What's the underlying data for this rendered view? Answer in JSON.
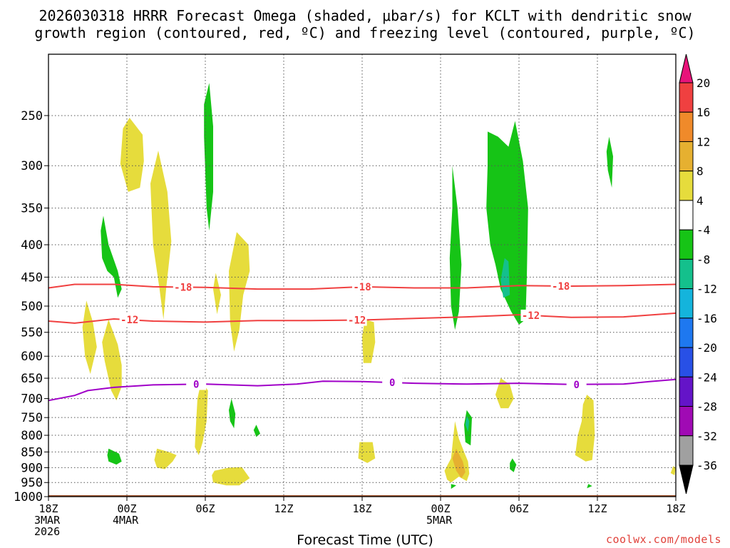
{
  "chart_data": {
    "type": "heatmap",
    "title_line1": "2026030318 HRRR Forecast Omega (shaded, μbar/s) for KCLT with dendritic snow",
    "title_line2": "growth region (contoured, red, ºC) and freezing level (contoured, purple, ºC)",
    "xlabel": "Forecast Time (UTC)",
    "ylabel": "",
    "credit": "coolwx.com/models",
    "x_unit": "forecast hour",
    "xlim": [
      0,
      48
    ],
    "ylim": [
      1000,
      200
    ],
    "x_ticks": [
      {
        "hour": 0,
        "lines": [
          "18Z",
          "3MAR",
          "2026"
        ]
      },
      {
        "hour": 6,
        "lines": [
          "00Z",
          "4MAR"
        ]
      },
      {
        "hour": 12,
        "lines": [
          "06Z"
        ]
      },
      {
        "hour": 18,
        "lines": [
          "12Z"
        ]
      },
      {
        "hour": 24,
        "lines": [
          "18Z"
        ]
      },
      {
        "hour": 30,
        "lines": [
          "00Z",
          "5MAR"
        ]
      },
      {
        "hour": 36,
        "lines": [
          "06Z"
        ]
      },
      {
        "hour": 42,
        "lines": [
          "12Z"
        ]
      },
      {
        "hour": 48,
        "lines": [
          "18Z"
        ]
      }
    ],
    "y_ticks": [
      250,
      300,
      350,
      400,
      450,
      500,
      550,
      600,
      650,
      700,
      750,
      800,
      850,
      900,
      950,
      1000
    ],
    "colorbar": {
      "labels": [
        "20",
        "16",
        "12",
        "8",
        "4",
        "-4",
        "-8",
        "-12",
        "-16",
        "-20",
        "-24",
        "-28",
        "-32",
        "-36"
      ],
      "colors": [
        "#e8137a",
        "#f04040",
        "#f08a2a",
        "#e6b030",
        "#e6dc3c",
        "#ffffff",
        "#16c416",
        "#14c08c",
        "#14b4dc",
        "#1e78f0",
        "#2850e6",
        "#6414c8",
        "#a00ab4",
        "#a0a0a0",
        "#000000"
      ]
    },
    "contours": [
      {
        "name": "DGZ -18C",
        "label": "-18",
        "color": "#f04040",
        "points": [
          [
            0,
            468
          ],
          [
            2,
            462
          ],
          [
            5,
            462
          ],
          [
            8,
            466
          ],
          [
            12,
            467
          ],
          [
            16,
            470
          ],
          [
            20,
            470
          ],
          [
            24,
            466
          ],
          [
            28,
            468
          ],
          [
            32,
            468
          ],
          [
            36,
            464
          ],
          [
            40,
            465
          ],
          [
            44,
            464
          ],
          [
            48,
            462
          ]
        ],
        "label_hours": [
          10.3,
          24.0,
          39.2
        ]
      },
      {
        "name": "DGZ -12C",
        "label": "-12",
        "color": "#f04040",
        "points": [
          [
            0,
            528
          ],
          [
            2,
            532
          ],
          [
            5,
            524
          ],
          [
            8,
            528
          ],
          [
            12,
            530
          ],
          [
            16,
            527
          ],
          [
            20,
            527
          ],
          [
            24,
            526
          ],
          [
            28,
            523
          ],
          [
            32,
            520
          ],
          [
            36,
            516
          ],
          [
            40,
            521
          ],
          [
            44,
            520
          ],
          [
            48,
            513
          ]
        ],
        "label_hours": [
          6.2,
          23.6,
          36.9
        ]
      },
      {
        "name": "Freezing level 0C",
        "label": "0",
        "color": "#a000c8",
        "points": [
          [
            0,
            705
          ],
          [
            2,
            692
          ],
          [
            3,
            680
          ],
          [
            5,
            672
          ],
          [
            8,
            666
          ],
          [
            12,
            664
          ],
          [
            16,
            668
          ],
          [
            19,
            664
          ],
          [
            21,
            657
          ],
          [
            24,
            658
          ],
          [
            28,
            662
          ],
          [
            32,
            664
          ],
          [
            36,
            662
          ],
          [
            40,
            665
          ],
          [
            44,
            664
          ],
          [
            46,
            658
          ],
          [
            48,
            653
          ]
        ],
        "label_hours": [
          11.3,
          26.3,
          40.4
        ]
      }
    ],
    "omega_regions": [
      {
        "value": 4,
        "pts": [
          [
            6.2,
            252
          ],
          [
            7.2,
            268
          ],
          [
            7.3,
            295
          ],
          [
            7.0,
            325
          ],
          [
            6.1,
            330
          ],
          [
            5.5,
            298
          ],
          [
            5.7,
            262
          ]
        ]
      },
      {
        "value": 4,
        "pts": [
          [
            8.4,
            284
          ],
          [
            9.1,
            330
          ],
          [
            9.4,
            395
          ],
          [
            9.0,
            470
          ],
          [
            8.8,
            525
          ],
          [
            8.5,
            470
          ],
          [
            8.0,
            400
          ],
          [
            7.8,
            320
          ]
        ]
      },
      {
        "value": 4,
        "pts": [
          [
            2.9,
            490
          ],
          [
            3.4,
            530
          ],
          [
            3.7,
            580
          ],
          [
            3.2,
            640
          ],
          [
            2.8,
            600
          ],
          [
            2.6,
            540
          ]
        ]
      },
      {
        "value": 4,
        "pts": [
          [
            4.6,
            525
          ],
          [
            5.3,
            575
          ],
          [
            5.6,
            620
          ],
          [
            5.6,
            670
          ],
          [
            5.2,
            705
          ],
          [
            4.8,
            680
          ],
          [
            4.3,
            610
          ],
          [
            4.1,
            570
          ]
        ]
      },
      {
        "value": 4,
        "pts": [
          [
            12.8,
            443
          ],
          [
            13.2,
            480
          ],
          [
            12.9,
            515
          ],
          [
            12.6,
            470
          ]
        ]
      },
      {
        "value": 4,
        "pts": [
          [
            14.4,
            382
          ],
          [
            15.3,
            400
          ],
          [
            15.4,
            440
          ],
          [
            14.9,
            480
          ],
          [
            14.6,
            545
          ],
          [
            14.2,
            590
          ],
          [
            13.9,
            530
          ],
          [
            13.8,
            440
          ]
        ]
      },
      {
        "value": 4,
        "pts": [
          [
            24.2,
            525
          ],
          [
            24.9,
            530
          ],
          [
            25.0,
            570
          ],
          [
            24.7,
            615
          ],
          [
            24.1,
            615
          ],
          [
            24.0,
            560
          ]
        ]
      },
      {
        "value": 4,
        "pts": [
          [
            11.7,
            655
          ],
          [
            12.2,
            680
          ],
          [
            12.1,
            760
          ],
          [
            11.8,
            820
          ],
          [
            11.5,
            860
          ],
          [
            11.2,
            835
          ],
          [
            11.3,
            760
          ],
          [
            11.4,
            700
          ]
        ]
      },
      {
        "value": 4,
        "pts": [
          [
            8.3,
            840
          ],
          [
            9.2,
            850
          ],
          [
            9.8,
            860
          ],
          [
            9.5,
            880
          ],
          [
            8.9,
            905
          ],
          [
            8.3,
            900
          ],
          [
            8.1,
            875
          ]
        ]
      },
      {
        "value": 4,
        "pts": [
          [
            12.7,
            910
          ],
          [
            13.8,
            900
          ],
          [
            14.8,
            898
          ],
          [
            15.4,
            935
          ],
          [
            14.6,
            960
          ],
          [
            13.6,
            960
          ],
          [
            12.6,
            950
          ],
          [
            12.5,
            925
          ]
        ]
      },
      {
        "value": 4,
        "pts": [
          [
            23.8,
            820
          ],
          [
            24.8,
            820
          ],
          [
            25.0,
            870
          ],
          [
            24.4,
            885
          ],
          [
            23.7,
            870
          ]
        ]
      },
      {
        "value": 4,
        "pts": [
          [
            34.6,
            650
          ],
          [
            35.3,
            665
          ],
          [
            35.6,
            700
          ],
          [
            35.2,
            725
          ],
          [
            34.6,
            725
          ],
          [
            34.2,
            690
          ]
        ]
      },
      {
        "value": 4,
        "pts": [
          [
            41.2,
            690
          ],
          [
            41.7,
            705
          ],
          [
            41.8,
            800
          ],
          [
            41.6,
            875
          ],
          [
            41.1,
            880
          ],
          [
            40.3,
            860
          ],
          [
            40.5,
            800
          ],
          [
            40.8,
            760
          ],
          [
            40.9,
            715
          ]
        ]
      },
      {
        "value": 4,
        "pts": [
          [
            47.8,
            895
          ],
          [
            48.0,
            900
          ],
          [
            47.9,
            925
          ],
          [
            47.6,
            918
          ]
        ]
      },
      {
        "value": 4,
        "pts": [
          [
            31.1,
            760
          ],
          [
            31.4,
            810
          ],
          [
            31.8,
            850
          ],
          [
            32.1,
            880
          ],
          [
            32.2,
            920
          ],
          [
            32.0,
            945
          ],
          [
            31.4,
            930
          ],
          [
            30.8,
            950
          ],
          [
            30.5,
            940
          ],
          [
            30.3,
            910
          ],
          [
            30.8,
            870
          ]
        ]
      },
      {
        "value": 8,
        "pts": [
          [
            31.2,
            840
          ],
          [
            31.7,
            880
          ],
          [
            31.9,
            915
          ],
          [
            31.6,
            935
          ],
          [
            31.2,
            910
          ],
          [
            30.9,
            870
          ]
        ]
      },
      {
        "value": -4,
        "pts": [
          [
            12.3,
            222
          ],
          [
            12.6,
            260
          ],
          [
            12.6,
            330
          ],
          [
            12.3,
            380
          ],
          [
            12.1,
            350
          ],
          [
            11.9,
            270
          ],
          [
            11.9,
            240
          ]
        ]
      },
      {
        "value": -4,
        "pts": [
          [
            4.2,
            360
          ],
          [
            4.6,
            400
          ],
          [
            5.3,
            440
          ],
          [
            5.6,
            470
          ],
          [
            5.3,
            485
          ],
          [
            5.0,
            450
          ],
          [
            4.5,
            440
          ],
          [
            4.1,
            420
          ],
          [
            4.0,
            380
          ]
        ]
      },
      {
        "value": -4,
        "pts": [
          [
            14.0,
            700
          ],
          [
            14.3,
            740
          ],
          [
            14.2,
            780
          ],
          [
            13.9,
            760
          ],
          [
            13.8,
            730
          ]
        ]
      },
      {
        "value": -4,
        "pts": [
          [
            15.9,
            770
          ],
          [
            16.2,
            795
          ],
          [
            15.9,
            805
          ],
          [
            15.7,
            785
          ]
        ]
      },
      {
        "value": -4,
        "pts": [
          [
            4.6,
            840
          ],
          [
            5.4,
            855
          ],
          [
            5.6,
            880
          ],
          [
            5.2,
            890
          ],
          [
            4.6,
            880
          ],
          [
            4.5,
            860
          ]
        ]
      },
      {
        "value": -4,
        "pts": [
          [
            33.6,
            265
          ],
          [
            34.4,
            270
          ],
          [
            35.2,
            280
          ],
          [
            35.7,
            255
          ],
          [
            36.3,
            295
          ],
          [
            36.7,
            350
          ],
          [
            36.6,
            450
          ],
          [
            36.5,
            525
          ],
          [
            36.0,
            535
          ],
          [
            35.4,
            510
          ],
          [
            34.6,
            470
          ],
          [
            34.2,
            430
          ],
          [
            33.8,
            400
          ],
          [
            33.5,
            350
          ],
          [
            33.6,
            300
          ]
        ]
      },
      {
        "value": -4,
        "pts": [
          [
            30.9,
            300
          ],
          [
            31.3,
            350
          ],
          [
            31.6,
            430
          ],
          [
            31.4,
            510
          ],
          [
            31.1,
            545
          ],
          [
            30.8,
            500
          ],
          [
            30.7,
            420
          ],
          [
            30.9,
            350
          ]
        ]
      },
      {
        "value": -4,
        "pts": [
          [
            42.9,
            270
          ],
          [
            43.2,
            290
          ],
          [
            43.1,
            325
          ],
          [
            42.8,
            305
          ],
          [
            42.7,
            285
          ]
        ]
      },
      {
        "value": -4,
        "pts": [
          [
            32.0,
            730
          ],
          [
            32.4,
            750
          ],
          [
            32.3,
            830
          ],
          [
            31.9,
            820
          ],
          [
            31.8,
            770
          ]
        ]
      },
      {
        "value": -4,
        "pts": [
          [
            35.5,
            870
          ],
          [
            35.8,
            890
          ],
          [
            35.6,
            915
          ],
          [
            35.3,
            905
          ],
          [
            35.3,
            885
          ]
        ]
      },
      {
        "value": -4,
        "pts": [
          [
            30.8,
            955
          ],
          [
            31.2,
            960
          ],
          [
            30.8,
            972
          ]
        ]
      },
      {
        "value": -4,
        "pts": [
          [
            41.3,
            955
          ],
          [
            41.6,
            962
          ],
          [
            41.2,
            970
          ]
        ]
      },
      {
        "value": -8,
        "pts": [
          [
            34.9,
            420
          ],
          [
            35.2,
            425
          ],
          [
            35.3,
            480
          ],
          [
            34.8,
            485
          ],
          [
            34.6,
            455
          ]
        ]
      },
      {
        "value": -8,
        "pts": [
          [
            32.0,
            745
          ],
          [
            32.2,
            760
          ],
          [
            32.1,
            790
          ],
          [
            31.9,
            770
          ]
        ]
      }
    ],
    "terrain": {
      "color": "#a0522d",
      "from_hpa": 1000
    }
  }
}
